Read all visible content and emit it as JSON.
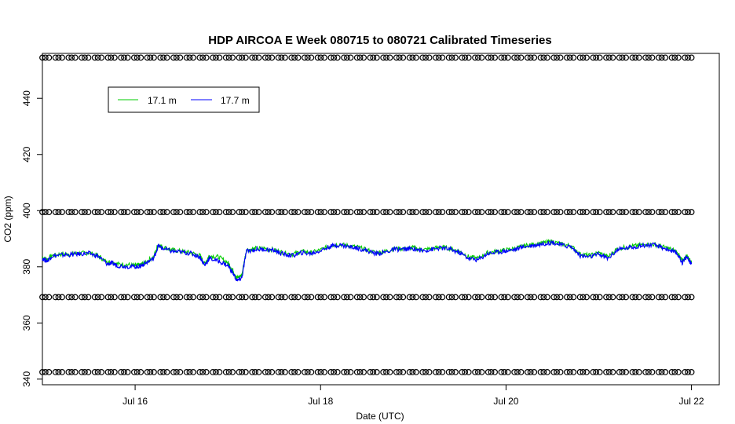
{
  "chart_data": {
    "type": "line",
    "title": "HDP AIRCOA E  Week 080715 to 080721  Calibrated Timeseries",
    "xlabel": "Date (UTC)",
    "ylabel": "CO2 (ppm)",
    "xlim": [
      0,
      7.3
    ],
    "ylim": [
      338,
      456
    ],
    "x_ticks": [
      {
        "value": 1,
        "label": "Jul 16"
      },
      {
        "value": 3,
        "label": "Jul 18"
      },
      {
        "value": 5,
        "label": "Jul 20"
      },
      {
        "value": 7,
        "label": "Jul 22"
      }
    ],
    "y_ticks": [
      340,
      360,
      380,
      400,
      420,
      440
    ],
    "grid": false,
    "legend": {
      "position": "top-left"
    },
    "series": [
      {
        "name": "17.1 m",
        "color": "#00cc00",
        "x": [
          0,
          0.05,
          0.1,
          0.2,
          0.3,
          0.4,
          0.5,
          0.6,
          0.7,
          0.75,
          0.8,
          0.9,
          1.0,
          1.05,
          1.1,
          1.2,
          1.25,
          1.3,
          1.4,
          1.5,
          1.6,
          1.7,
          1.75,
          1.8,
          1.9,
          2.0,
          2.05,
          2.1,
          2.15,
          2.2,
          2.3,
          2.4,
          2.5,
          2.6,
          2.7,
          2.8,
          2.9,
          3.0,
          3.1,
          3.2,
          3.3,
          3.4,
          3.5,
          3.6,
          3.7,
          3.8,
          3.9,
          4.0,
          4.1,
          4.2,
          4.3,
          4.4,
          4.5,
          4.6,
          4.7,
          4.8,
          4.9,
          5.0,
          5.1,
          5.2,
          5.3,
          5.4,
          5.5,
          5.6,
          5.7,
          5.8,
          5.9,
          6.0,
          6.1,
          6.2,
          6.3,
          6.4,
          6.5,
          6.6,
          6.7,
          6.8,
          6.85,
          6.9,
          6.95,
          7.0
        ],
        "y": [
          383.5,
          382.5,
          384,
          384.5,
          384.5,
          384.8,
          385,
          384,
          381.5,
          381.8,
          381,
          380.8,
          380.5,
          380.5,
          381.5,
          383.5,
          388,
          387,
          386,
          385.5,
          385,
          384,
          381,
          384,
          383.5,
          381.5,
          379,
          376,
          377,
          386,
          386.5,
          386.5,
          386,
          385,
          384.5,
          385.5,
          385,
          386,
          387.5,
          388,
          387.5,
          387,
          386,
          385,
          385.5,
          386.5,
          386.5,
          386.8,
          386,
          386.5,
          387,
          386.5,
          385.5,
          383.5,
          383,
          385,
          385.5,
          386,
          386.5,
          387.5,
          388,
          388.5,
          389,
          388,
          387.5,
          384.5,
          384,
          385,
          383.5,
          386.5,
          387,
          387.5,
          388,
          388,
          387,
          386,
          385,
          382,
          384,
          381.5
        ]
      },
      {
        "name": "17.7 m",
        "color": "#0000ff",
        "x": [
          0,
          0.05,
          0.1,
          0.2,
          0.3,
          0.4,
          0.5,
          0.6,
          0.7,
          0.75,
          0.8,
          0.9,
          1.0,
          1.05,
          1.1,
          1.2,
          1.25,
          1.3,
          1.4,
          1.5,
          1.6,
          1.7,
          1.75,
          1.8,
          1.9,
          2.0,
          2.05,
          2.1,
          2.15,
          2.2,
          2.3,
          2.4,
          2.5,
          2.6,
          2.7,
          2.8,
          2.9,
          3.0,
          3.1,
          3.2,
          3.3,
          3.4,
          3.5,
          3.6,
          3.7,
          3.8,
          3.9,
          4.0,
          4.1,
          4.2,
          4.3,
          4.4,
          4.5,
          4.6,
          4.7,
          4.8,
          4.9,
          5.0,
          5.1,
          5.2,
          5.3,
          5.4,
          5.5,
          5.6,
          5.7,
          5.8,
          5.9,
          6.0,
          6.1,
          6.2,
          6.3,
          6.4,
          6.5,
          6.6,
          6.7,
          6.8,
          6.85,
          6.9,
          6.95,
          7.0
        ],
        "y": [
          383,
          382,
          383.8,
          384.2,
          384.3,
          384.6,
          384.8,
          383.8,
          381,
          381.3,
          380.5,
          380.2,
          380,
          380.2,
          381,
          383,
          387.5,
          386.5,
          385.5,
          385.2,
          384.8,
          383.5,
          380.5,
          383,
          382,
          380.5,
          378,
          375,
          376,
          385.5,
          386.2,
          386.2,
          385.8,
          384.5,
          384,
          385,
          384.7,
          385.8,
          387.2,
          387.8,
          387.2,
          386.7,
          385.7,
          384.7,
          385.2,
          386.2,
          386.2,
          386.5,
          385.7,
          386.2,
          386.7,
          386.2,
          385,
          383,
          382.5,
          384.7,
          385.2,
          385.7,
          386.2,
          387.2,
          387.7,
          388.2,
          388.7,
          387.7,
          387.2,
          384,
          383.5,
          384.5,
          383,
          386,
          386.7,
          387.2,
          387.7,
          387.7,
          386.7,
          385.5,
          384.5,
          381.5,
          383.5,
          381
        ]
      }
    ],
    "reference_points": [
      {
        "name": "upper",
        "y": 454.5
      },
      {
        "name": "middle-upper",
        "y": 399.5
      },
      {
        "name": "middle-lower",
        "y": 369.2
      },
      {
        "name": "lower",
        "y": 342.5
      }
    ]
  }
}
